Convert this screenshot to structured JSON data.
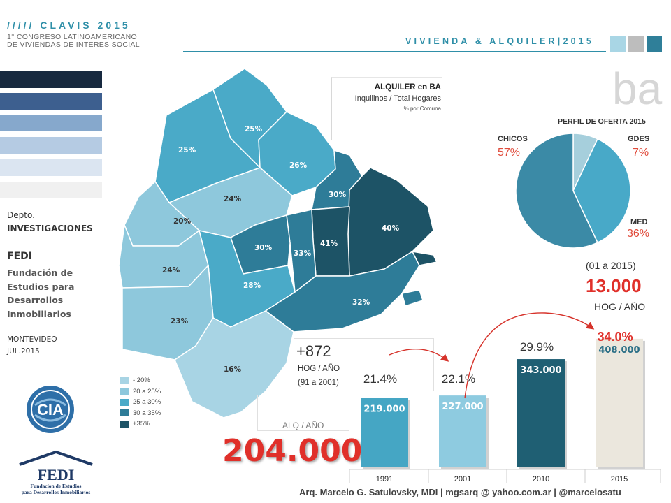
{
  "header": {
    "title": "///// CLAVIS 2015",
    "subtitle_1": "1° CONGRESO LATINOAMERICANO",
    "subtitle_2": "DE VIVIENDAS DE INTERES SOCIAL",
    "right_title": "VIVIENDA & ALQUILER|2015",
    "watermark": "ba"
  },
  "sidebar": {
    "dept_1": "Depto.",
    "dept_2": "INVESTIGACIONES",
    "org": "FEDI",
    "org_full": [
      "Fundación de",
      "Estudios para",
      "Desarrollos",
      "Inmobiliarios"
    ],
    "place": "MONTEVIDEO",
    "date": "JUL.2015",
    "cia_logo_text": "CIA",
    "fedi_logo_title": "FEDI",
    "fedi_logo_line1": "Fundacion de Estudios",
    "fedi_logo_line2": "para Desarrollos Inmobiliarios",
    "strip_colors": [
      "#17293f",
      "#3d5f8f",
      "#86a8cc",
      "#b5cbe3",
      "#dbe5f1",
      "#f0f0f0"
    ]
  },
  "map": {
    "title_1": "ALQUILER en BA",
    "title_2": "Inquilinos / Total Hogares",
    "title_3": "% por Comuna",
    "comunas": [
      "25%",
      "25%",
      "26%",
      "24%",
      "30%",
      "20%",
      "40%",
      "41%",
      "33%",
      "30%",
      "24%",
      "28%",
      "32%",
      "23%",
      "16%"
    ],
    "legend": [
      {
        "label": "- 20%",
        "color": "#a8d4e4"
      },
      {
        "label": "20 a 25%",
        "color": "#8ec8dc"
      },
      {
        "label": "25 a 30%",
        "color": "#4aaac8"
      },
      {
        "label": "30 a 35%",
        "color": "#2e7c98"
      },
      {
        "label": "+35%",
        "color": "#1d5366"
      }
    ]
  },
  "growth": {
    "delta": "+872",
    "delta_unit": "HOG / AÑO",
    "delta_period": "(91 a 2001)",
    "alq_label": "ALQ / AÑO",
    "alq_value": "204.000",
    "period_2015": "(01 a 2015)",
    "value_2015": "13.000",
    "unit_2015": "HOG / AÑO"
  },
  "chart_data": [
    {
      "type": "pie",
      "title": "PERFIL DE OFERTA 2015",
      "categories": [
        "CHICOS",
        "GDES",
        "MED"
      ],
      "labels": [
        "57%",
        "7%",
        "36%"
      ],
      "values": [
        57,
        7,
        36
      ],
      "colors": [
        "#3b8aa6",
        "#a6cfdc",
        "#48a9c8"
      ]
    },
    {
      "type": "bar",
      "categories": [
        "1991",
        "2001",
        "2010",
        "2015"
      ],
      "values": [
        219000,
        227000,
        343000,
        408000
      ],
      "value_labels": [
        "219.000",
        "227.000",
        "343.000",
        "408.000"
      ],
      "share_labels": [
        "21.4%",
        "22.1%",
        "29.9%",
        "34.0%"
      ],
      "colors": [
        "#45a6c4",
        "#8ecbe0",
        "#1f5f73",
        "#ebe7dd"
      ],
      "ylim": [
        0,
        450000
      ]
    }
  ],
  "footer": {
    "credit": "Arq. Marcelo G. Satulovsky, MDI  |  mgsarq @ yahoo.com.ar  |  @marcelosatu"
  }
}
